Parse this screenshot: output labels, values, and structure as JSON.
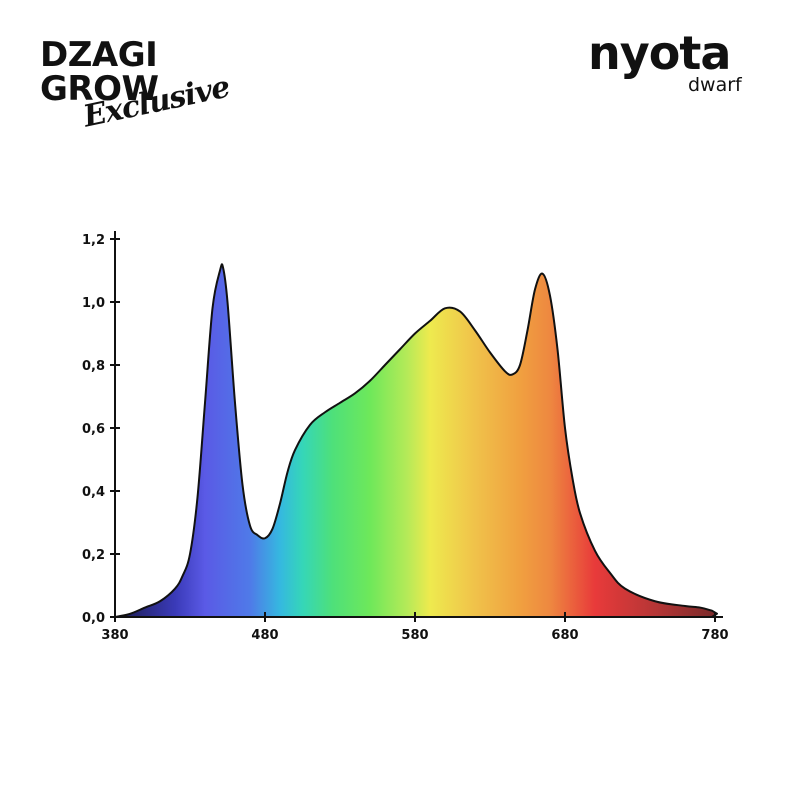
{
  "logos": {
    "left_line1": "DZAGI",
    "left_line2": "GROW",
    "left_script": "Exclusive",
    "right_brand": "nyota",
    "right_sub": "dwarf"
  },
  "chart_data": {
    "type": "area",
    "title": "",
    "xlabel": "",
    "ylabel": "",
    "xlim": [
      380,
      780
    ],
    "ylim": [
      0,
      1.2
    ],
    "x_ticks": [
      "380",
      "480",
      "580",
      "680",
      "780"
    ],
    "y_ticks": [
      "0,0",
      "0,2",
      "0,4",
      "0,6",
      "0,8",
      "1,0",
      "1,2"
    ],
    "grid": false,
    "series": [
      {
        "x": [
          380,
          390,
          400,
          410,
          420,
          425,
          430,
          435,
          440,
          445,
          450,
          452,
          455,
          460,
          465,
          470,
          475,
          480,
          485,
          490,
          495,
          500,
          510,
          520,
          530,
          540,
          550,
          560,
          570,
          580,
          590,
          600,
          610,
          620,
          630,
          640,
          645,
          650,
          655,
          660,
          665,
          670,
          675,
          680,
          685,
          690,
          700,
          710,
          720,
          740,
          760,
          770,
          778
        ],
        "values": [
          0.0,
          0.01,
          0.03,
          0.05,
          0.09,
          0.13,
          0.2,
          0.38,
          0.68,
          0.98,
          1.1,
          1.11,
          1.0,
          0.68,
          0.42,
          0.29,
          0.26,
          0.25,
          0.28,
          0.36,
          0.46,
          0.53,
          0.61,
          0.65,
          0.68,
          0.71,
          0.75,
          0.8,
          0.85,
          0.9,
          0.94,
          0.98,
          0.97,
          0.91,
          0.84,
          0.78,
          0.77,
          0.8,
          0.91,
          1.04,
          1.09,
          1.02,
          0.85,
          0.6,
          0.44,
          0.33,
          0.21,
          0.14,
          0.09,
          0.05,
          0.035,
          0.03,
          0.02
        ]
      }
    ],
    "spectrum_colors": [
      {
        "nm": 380,
        "color": "#1a1a4a"
      },
      {
        "nm": 420,
        "color": "#3a3ab8"
      },
      {
        "nm": 440,
        "color": "#5a5ae6"
      },
      {
        "nm": 470,
        "color": "#4f7ae8"
      },
      {
        "nm": 490,
        "color": "#35b8e0"
      },
      {
        "nm": 505,
        "color": "#35d6b8"
      },
      {
        "nm": 525,
        "color": "#4ee07a"
      },
      {
        "nm": 550,
        "color": "#6ee85a"
      },
      {
        "nm": 575,
        "color": "#b6ea58"
      },
      {
        "nm": 590,
        "color": "#eeea4e"
      },
      {
        "nm": 620,
        "color": "#f0c24a"
      },
      {
        "nm": 650,
        "color": "#f0a040"
      },
      {
        "nm": 670,
        "color": "#ee8840"
      },
      {
        "nm": 700,
        "color": "#e83a3a"
      },
      {
        "nm": 740,
        "color": "#b63636"
      },
      {
        "nm": 780,
        "color": "#7a2a2a"
      }
    ]
  }
}
